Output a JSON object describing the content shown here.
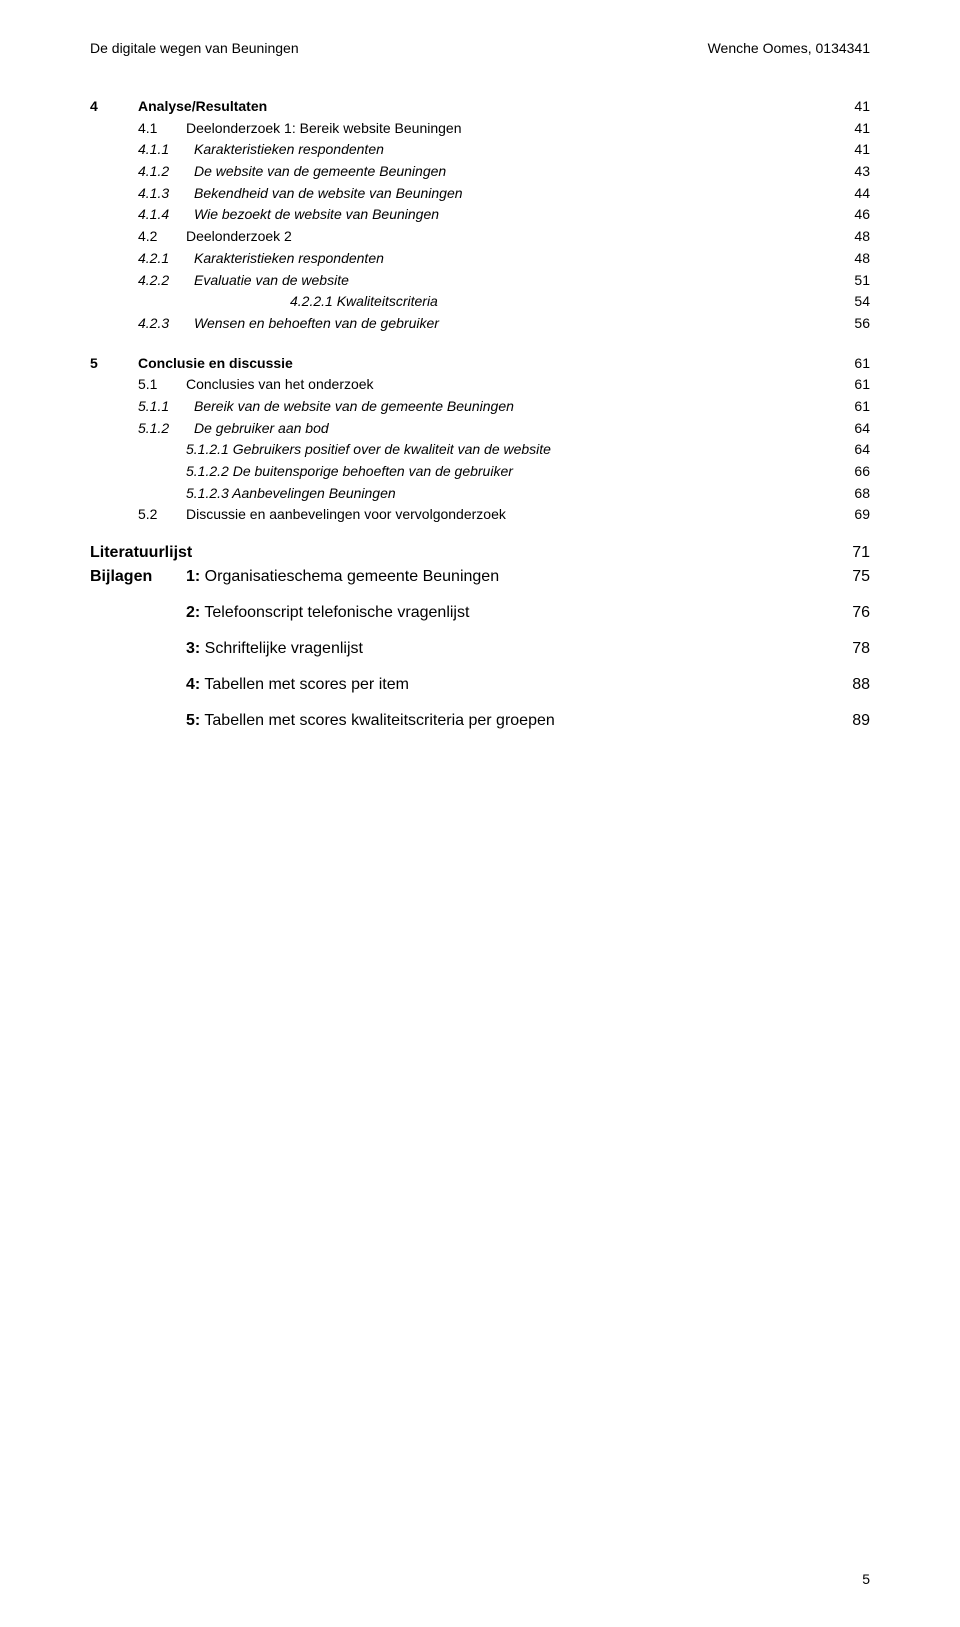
{
  "header": {
    "left": "De digitale wegen van Beuningen",
    "right": "Wenche Oomes, 0134341"
  },
  "sections": [
    {
      "num": "4",
      "title": "Analyse/Resultaten",
      "page": "41",
      "bold": true,
      "level": 0,
      "children": [
        {
          "num": "4.1",
          "title": "Deelonderzoek 1: Bereik website Beuningen",
          "page": "41",
          "level": 1,
          "children": [
            {
              "num": "4.1.1",
              "title": "Karakteristieken respondenten",
              "page": "41",
              "italic": true,
              "level": 2
            },
            {
              "num": "4.1.2",
              "title": "De website van de gemeente Beuningen",
              "page": "43",
              "italic": true,
              "level": 2
            },
            {
              "num": "4.1.3",
              "title": "Bekendheid van de website van Beuningen",
              "page": "44",
              "italic": true,
              "level": 2
            },
            {
              "num": "4.1.4",
              "title": "Wie bezoekt de website van Beuningen",
              "page": "46",
              "italic": true,
              "level": 2
            }
          ]
        },
        {
          "num": "4.2",
          "title": "Deelonderzoek 2",
          "page": "48",
          "level": 1,
          "children": [
            {
              "num": "4.2.1",
              "title": "Karakteristieken respondenten",
              "page": "48",
              "italic": true,
              "level": 2
            },
            {
              "num": "4.2.2",
              "title": "Evaluatie van de website",
              "page": "51",
              "italic": true,
              "level": 2,
              "children": [
                {
                  "num": "4.2.2.1",
                  "title": "Kwaliteitscriteria",
                  "page": "54",
                  "italic": true,
                  "level": 3,
                  "special_indent": true
                }
              ]
            },
            {
              "num": "4.2.3",
              "title": "Wensen en behoeften van de gebruiker",
              "page": "56",
              "italic": true,
              "level": 2
            }
          ]
        }
      ]
    },
    {
      "num": "5",
      "title": "Conclusie en discussie",
      "page": "61",
      "bold": true,
      "level": 0,
      "children": [
        {
          "num": "5.1",
          "title": "Conclusies van het onderzoek",
          "page": "61",
          "level": 1,
          "children": [
            {
              "num": "5.1.1",
              "title": "Bereik van de website van de gemeente Beuningen",
              "page": "61",
              "italic": true,
              "level": 2
            },
            {
              "num": "5.1.2",
              "title": "De gebruiker aan bod",
              "page": "64",
              "italic": true,
              "level": 2,
              "children": [
                {
                  "num": "5.1.2.1",
                  "title": "Gebruikers positief over de kwaliteit van de website",
                  "page": "64",
                  "italic": true,
                  "level": 3
                },
                {
                  "num": "5.1.2.2",
                  "title": "De buitensporige behoeften van de gebruiker",
                  "page": "66",
                  "italic": true,
                  "level": 3
                },
                {
                  "num": "5.1.2.3",
                  "title": "Aanbevelingen Beuningen",
                  "page": "68",
                  "italic": true,
                  "level": 3
                }
              ]
            }
          ]
        },
        {
          "num": "5.2",
          "title": "Discussie en aanbevelingen voor vervolgonderzoek",
          "page": "69",
          "level": 1
        }
      ]
    }
  ],
  "literatuurlijst": {
    "label": "Literatuurlijst",
    "page": "71"
  },
  "bijlagen": {
    "label": "Bijlagen",
    "items": [
      {
        "num": "1",
        "sep": ": ",
        "title": "Organisatieschema gemeente Beuningen",
        "page": "75"
      },
      {
        "num": "2",
        "sep": ": ",
        "title": "Telefoonscript telefonische vragenlijst",
        "page": "76"
      },
      {
        "num": "3",
        "sep": ": ",
        "title": "Schriftelijke vragenlijst",
        "page": "78"
      },
      {
        "num": "4",
        "sep": ": ",
        "title": "Tabellen met scores per item",
        "page": "88"
      },
      {
        "num": "5",
        "sep": ": ",
        "title": "Tabellen met scores kwaliteitscriteria per groepen",
        "page": "89"
      }
    ]
  },
  "page_number": "5"
}
